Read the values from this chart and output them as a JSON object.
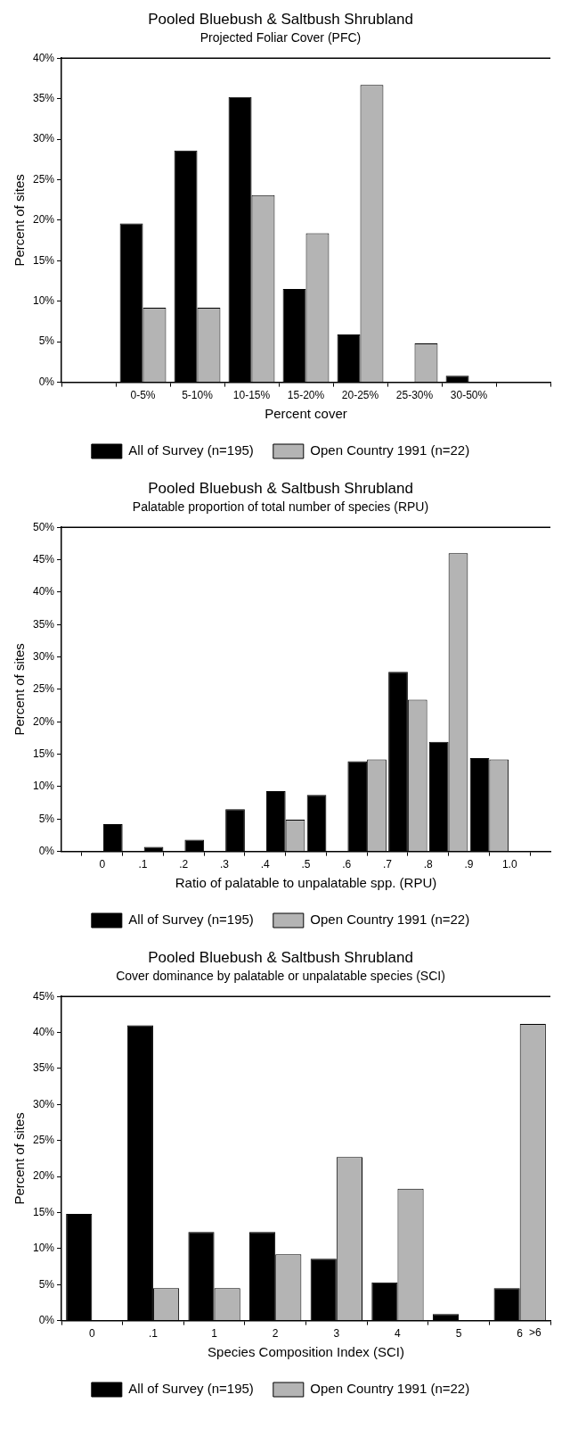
{
  "chart_data": [
    {
      "type": "bar",
      "title": "Pooled Bluebush & Saltbush Shrubland",
      "subtitle": "Projected Foliar Cover (PFC)",
      "xlabel": "Percent cover",
      "ylabel": "Percent of sites",
      "categories": [
        null,
        "0-5%",
        "5-10%",
        "10-15%",
        "15-20%",
        "20-25%",
        "25-30%",
        "30-50%",
        null
      ],
      "series": [
        {
          "name": "All of Survey (n=195)",
          "color": "#000000",
          "values": [
            null,
            19.6,
            28.6,
            35.2,
            11.5,
            5.9,
            null,
            0.8,
            null
          ]
        },
        {
          "name": "Open Country 1991 (n=22)",
          "color": "#b4b4b4",
          "values": [
            null,
            9.2,
            9.2,
            23.1,
            18.4,
            36.7,
            4.8,
            null,
            null
          ]
        }
      ],
      "ylim": [
        0,
        40
      ],
      "yticks": [
        {
          "value": 0,
          "label": "0%"
        },
        {
          "value": 5,
          "label": "5%"
        },
        {
          "value": 10,
          "label": "10%"
        },
        {
          "value": 15,
          "label": "15%"
        },
        {
          "value": 20,
          "label": "20%"
        },
        {
          "value": 25,
          "label": "25%"
        },
        {
          "value": 30,
          "label": "30%"
        },
        {
          "value": 35,
          "label": "35%"
        },
        {
          "value": 40,
          "label": "40%"
        }
      ],
      "grid": false,
      "legend": "bottom"
    },
    {
      "type": "histogram",
      "title": "Pooled Bluebush & Saltbush Shrubland",
      "subtitle": "Palatable proportion of total number of species (RPU)",
      "xlabel": "Ratio of palatable to unpalatable spp. (RPU)",
      "ylabel": "Percent of sites",
      "bins": [
        0,
        0.1,
        0.2,
        0.3,
        0.4,
        0.5,
        0.6,
        0.7,
        0.8,
        0.9,
        1
      ],
      "series": [
        {
          "name": "All of Survey (n=195)",
          "color": "#000000",
          "values": [
            4.2,
            0.7,
            1.8,
            6.5,
            9.3,
            8.7,
            13.9,
            27.7,
            16.9,
            14.4
          ]
        },
        {
          "name": "Open Country 1991 (n=22)",
          "color": "#b4b4b4",
          "values": [
            null,
            null,
            null,
            null,
            4.9,
            null,
            14.2,
            23.4,
            46,
            14.2
          ]
        }
      ],
      "xlim": [
        -0.1,
        1.1
      ],
      "xticks": [
        0,
        {
          "value": 0.1,
          "label": ".1"
        },
        {
          "value": 0.2,
          "label": ".2"
        },
        {
          "value": 0.3,
          "label": ".3"
        },
        {
          "value": 0.4,
          "label": ".4"
        },
        {
          "value": 0.5,
          "label": ".5"
        },
        {
          "value": 0.6,
          "label": ".6"
        },
        {
          "value": 0.7,
          "label": ".7"
        },
        {
          "value": 0.8,
          "label": ".8"
        },
        {
          "value": 0.9,
          "label": ".9"
        },
        {
          "value": 1,
          "label": "1.0"
        }
      ],
      "ylim": [
        0,
        50
      ],
      "yticks": [
        {
          "value": 0,
          "label": "0%"
        },
        {
          "value": 5,
          "label": "5%"
        },
        {
          "value": 10,
          "label": "10%"
        },
        {
          "value": 15,
          "label": "15%"
        },
        {
          "value": 20,
          "label": "20%"
        },
        {
          "value": 25,
          "label": "25%"
        },
        {
          "value": 30,
          "label": "30%"
        },
        {
          "value": 35,
          "label": "35%"
        },
        {
          "value": 40,
          "label": "40%"
        },
        {
          "value": 45,
          "label": "45%"
        },
        {
          "value": 50,
          "label": "50%"
        }
      ],
      "grid": false,
      "legend": "bottom"
    },
    {
      "type": "bar",
      "title": "Pooled Bluebush & Saltbush Shrubland",
      "subtitle": "Cover dominance by palatable or unpalatable species (SCI)",
      "xlabel": "Species Composition Index (SCI)",
      "ylabel": "Percent of sites",
      "categories": [
        "0",
        ".1",
        "1",
        "2",
        "3",
        "4",
        "5",
        "6"
      ],
      "series": [
        {
          "name": "All of Survey (n=195)",
          "color": "#000000",
          "values": [
            14.8,
            41,
            12.3,
            12.3,
            8.6,
            5.3,
            0.9,
            4.5
          ]
        },
        {
          "name": "Open Country 1991 (n=22)",
          "color": "#b4b4b4",
          "values": [
            null,
            4.5,
            4.5,
            9.2,
            22.7,
            18.3,
            null,
            41.2
          ]
        }
      ],
      "annotations": [
        ">6"
      ],
      "ylim": [
        0,
        45
      ],
      "yticks": [
        {
          "value": 0,
          "label": "0%"
        },
        {
          "value": 5,
          "label": "5%"
        },
        {
          "value": 10,
          "label": "10%"
        },
        {
          "value": 15,
          "label": "15%"
        },
        {
          "value": 20,
          "label": "20%"
        },
        {
          "value": 25,
          "label": "25%"
        },
        {
          "value": 30,
          "label": "30%"
        },
        {
          "value": 35,
          "label": "35%"
        },
        {
          "value": 40,
          "label": "40%"
        },
        {
          "value": 45,
          "label": "45%"
        }
      ],
      "grid": false,
      "legend": "bottom"
    }
  ]
}
